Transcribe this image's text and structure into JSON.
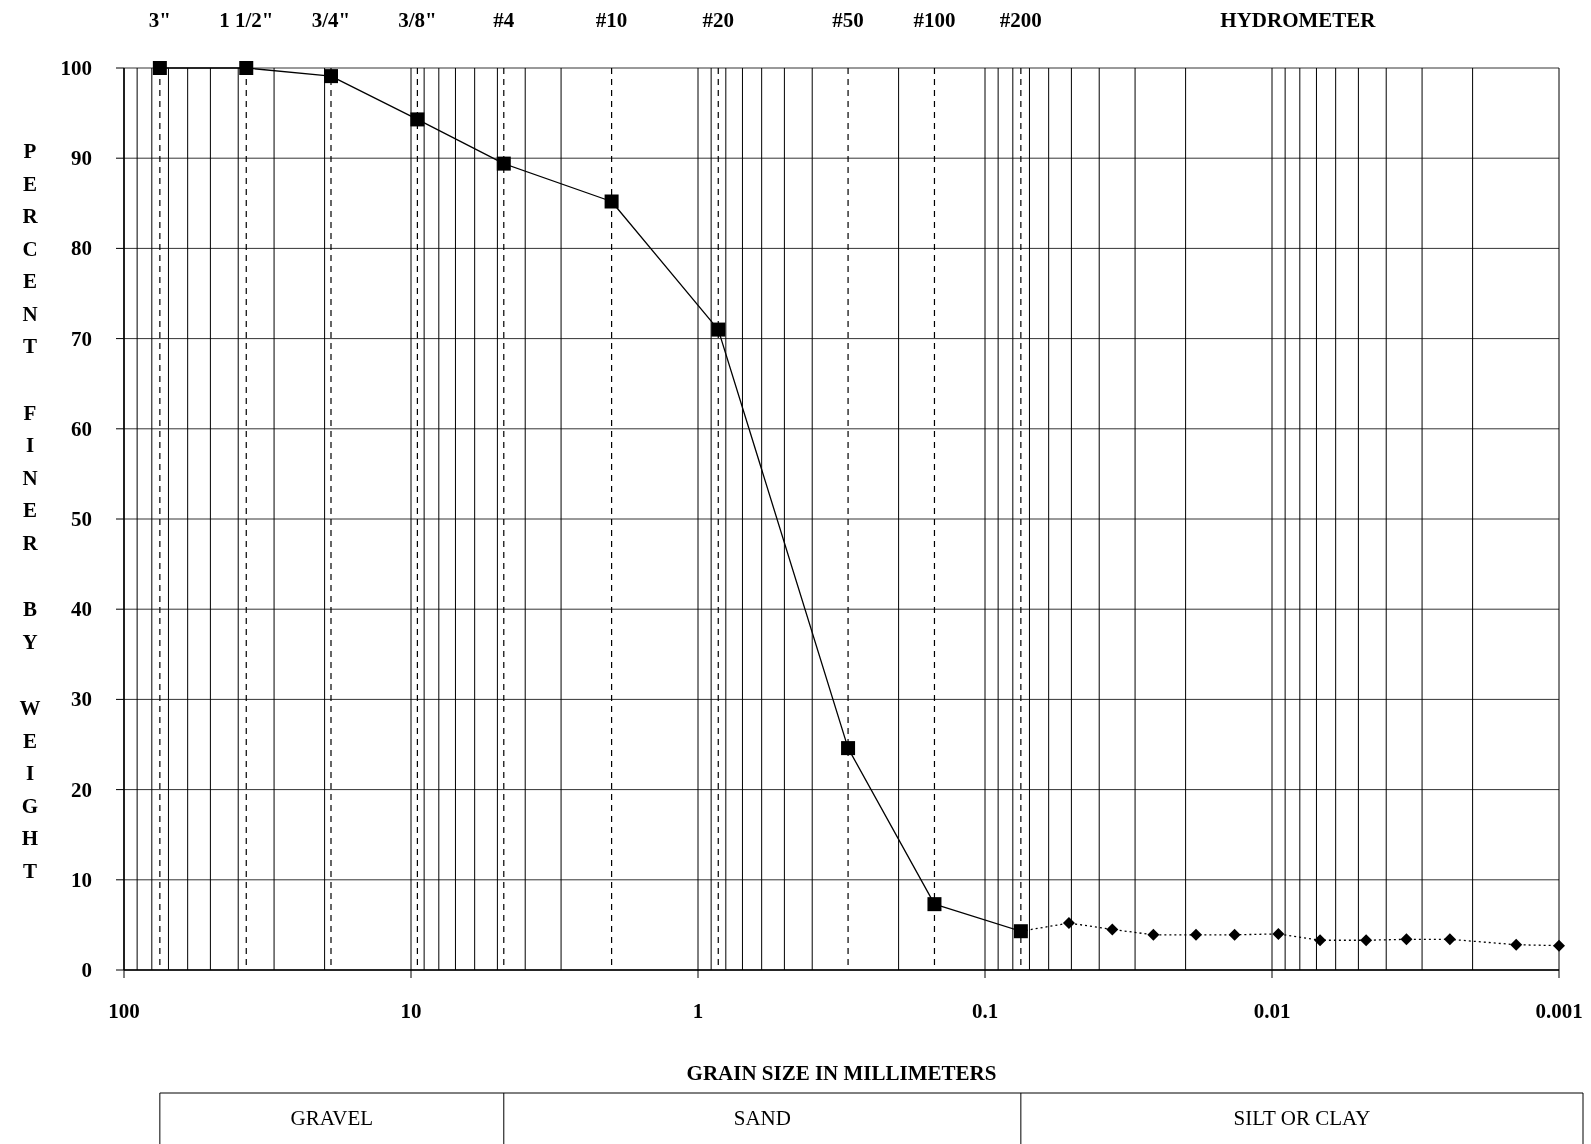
{
  "chart_data": {
    "type": "line",
    "xlabel": "GRAIN SIZE IN MILLIMETERS",
    "ylabel": "PERCENT FINER BY WEIGHT",
    "log": "x",
    "grid": true,
    "xlim": [
      100,
      0.001
    ],
    "xticks": [
      100,
      {
        "value": 90,
        "label": null
      },
      {
        "value": 80,
        "label": null
      },
      {
        "value": 70,
        "label": null
      },
      {
        "value": 60,
        "label": null
      },
      {
        "value": 50,
        "label": null
      },
      {
        "value": 40,
        "label": null
      },
      {
        "value": 30,
        "label": null
      },
      {
        "value": 20,
        "label": null
      },
      10,
      {
        "value": 9,
        "label": null
      },
      {
        "value": 8,
        "label": null
      },
      {
        "value": 7,
        "label": null
      },
      {
        "value": 6,
        "label": null
      },
      {
        "value": 5,
        "label": null
      },
      {
        "value": 4,
        "label": null
      },
      {
        "value": 3,
        "label": null
      },
      1,
      {
        "value": 0.9,
        "label": null
      },
      {
        "value": 0.8,
        "label": null
      },
      {
        "value": 0.7,
        "label": null
      },
      {
        "value": 0.6,
        "label": null
      },
      {
        "value": 0.5,
        "label": null
      },
      {
        "value": 0.4,
        "label": null
      },
      {
        "value": 0.2,
        "label": null
      },
      0.1,
      {
        "value": 0.09,
        "label": null
      },
      {
        "value": 0.08,
        "label": null
      },
      {
        "value": 0.07,
        "label": null
      },
      {
        "value": 0.06,
        "label": null
      },
      {
        "value": 0.05,
        "label": null
      },
      {
        "value": 0.04,
        "label": null
      },
      {
        "value": 0.03,
        "label": null
      },
      {
        "value": 0.02,
        "label": null
      },
      0.01,
      {
        "value": 0.009,
        "label": null
      },
      {
        "value": 0.008,
        "label": null
      },
      {
        "value": 0.007,
        "label": null
      },
      {
        "value": 0.006,
        "label": null
      },
      {
        "value": 0.005,
        "label": null
      },
      {
        "value": 0.004,
        "label": null
      },
      {
        "value": 0.003,
        "label": null
      },
      {
        "value": 0.002,
        "label": null
      },
      0.001
    ],
    "ylim": [
      0,
      100
    ],
    "yticks": [
      0,
      10,
      20,
      30,
      40,
      50,
      60,
      70,
      80,
      90,
      100
    ],
    "ref_lines": [
      {
        "axis": "x",
        "value": 75,
        "line_style": "dashed"
      },
      {
        "axis": "x",
        "value": 37.5,
        "line_style": "dashed"
      },
      {
        "axis": "x",
        "value": 19,
        "line_style": "dashed"
      },
      {
        "axis": "x",
        "value": 9.5,
        "line_style": "dashed"
      },
      {
        "axis": "x",
        "value": 4.75,
        "line_style": "dashed"
      },
      {
        "axis": "x",
        "value": 2,
        "line_style": "dashed"
      },
      {
        "axis": "x",
        "value": 0.85,
        "line_style": "dashed"
      },
      {
        "axis": "x",
        "value": 0.3,
        "line_style": "dashed"
      },
      {
        "axis": "x",
        "value": 0.15,
        "line_style": "dashed"
      },
      {
        "axis": "x",
        "value": 0.075,
        "line_style": "dashed"
      }
    ],
    "annotations": [
      "HYDROMETER",
      "GRAVEL",
      "SAND",
      "SILT OR CLAY",
      "3\"",
      "1 1/2\"",
      "3/4\"",
      "3/8\"",
      "#4",
      "#10",
      "#20",
      "#50",
      "#100",
      "#200"
    ],
    "series": [
      {
        "color": "#000000",
        "marker": "square",
        "line_style": "solid",
        "x": [
          75,
          37.5,
          19,
          9.5,
          4.75,
          2,
          0.85,
          0.3,
          0.15,
          0.075
        ],
        "values": [
          100,
          100,
          99.1,
          94.3,
          89.4,
          85.2,
          71.0,
          24.6,
          7.3,
          4.3
        ]
      },
      {
        "color": "#000000",
        "marker": "diamond",
        "line_style": "dotted",
        "x": [
          0.075,
          0.051,
          0.036,
          0.0259,
          0.0184,
          0.0135,
          0.0095,
          0.0068,
          0.0047,
          0.0034,
          0.0024,
          0.00141,
          0.001
        ],
        "values": [
          4.3,
          5.2,
          4.5,
          3.9,
          3.9,
          3.9,
          4.0,
          3.3,
          3.3,
          3.4,
          3.4,
          2.8,
          2.7
        ]
      }
    ]
  }
}
